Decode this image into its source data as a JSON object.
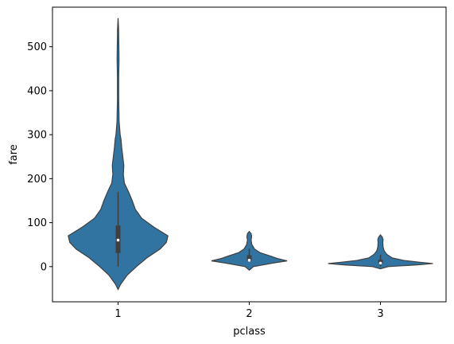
{
  "chart_data": {
    "type": "violin",
    "title": "",
    "xlabel": "pclass",
    "ylabel": "fare",
    "categories": [
      "1",
      "2",
      "3"
    ],
    "ylim": [
      -80,
      590
    ],
    "yticks": [
      0,
      100,
      200,
      300,
      400,
      500
    ],
    "grid": false,
    "violin_color": "#3274a1",
    "edge_color": "#3f3f3f",
    "violins": [
      {
        "category": "1",
        "min": -52,
        "max": 565,
        "q1": 30.9,
        "median": 60.3,
        "q3": 93.5,
        "whisker_low": 0,
        "whisker_high": 170,
        "profile": [
          [
            -52,
            0
          ],
          [
            -40,
            0.05
          ],
          [
            -20,
            0.17
          ],
          [
            0,
            0.35
          ],
          [
            20,
            0.55
          ],
          [
            40,
            0.8
          ],
          [
            55,
            0.92
          ],
          [
            70,
            0.95
          ],
          [
            90,
            0.68
          ],
          [
            110,
            0.45
          ],
          [
            130,
            0.33
          ],
          [
            150,
            0.27
          ],
          [
            170,
            0.2
          ],
          [
            190,
            0.12
          ],
          [
            210,
            0.1
          ],
          [
            230,
            0.11
          ],
          [
            250,
            0.09
          ],
          [
            270,
            0.07
          ],
          [
            290,
            0.055
          ],
          [
            300,
            0.04
          ],
          [
            330,
            0.02
          ],
          [
            380,
            0.012
          ],
          [
            430,
            0.012
          ],
          [
            470,
            0.018
          ],
          [
            500,
            0.015
          ],
          [
            540,
            0.01
          ],
          [
            565,
            0
          ]
        ]
      },
      {
        "category": "2",
        "min": -8,
        "max": 80,
        "q1": 13,
        "median": 14.5,
        "q3": 26,
        "whisker_low": 10.5,
        "whisker_high": 41,
        "profile": [
          [
            -8,
            0
          ],
          [
            0,
            0.08
          ],
          [
            8,
            0.45
          ],
          [
            13,
            0.72
          ],
          [
            18,
            0.55
          ],
          [
            25,
            0.38
          ],
          [
            32,
            0.2
          ],
          [
            40,
            0.1
          ],
          [
            50,
            0.05
          ],
          [
            60,
            0.035
          ],
          [
            68,
            0.045
          ],
          [
            75,
            0.035
          ],
          [
            80,
            0
          ]
        ]
      },
      {
        "category": "3",
        "min": -5,
        "max": 72,
        "q1": 7.9,
        "median": 8.05,
        "q3": 15.5,
        "whisker_low": 0,
        "whisker_high": 27,
        "profile": [
          [
            -5,
            0
          ],
          [
            0,
            0.15
          ],
          [
            4,
            0.7
          ],
          [
            7,
            1.0
          ],
          [
            10,
            0.75
          ],
          [
            14,
            0.45
          ],
          [
            20,
            0.22
          ],
          [
            28,
            0.12
          ],
          [
            36,
            0.07
          ],
          [
            45,
            0.05
          ],
          [
            55,
            0.045
          ],
          [
            62,
            0.05
          ],
          [
            68,
            0.03
          ],
          [
            72,
            0
          ]
        ]
      }
    ]
  }
}
